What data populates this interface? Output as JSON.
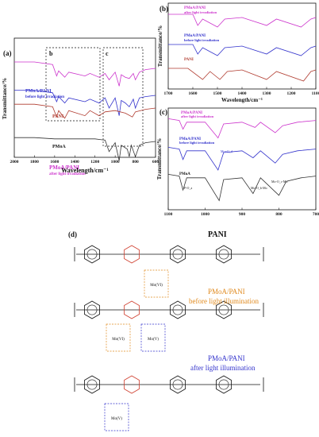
{
  "chart_data": [
    {
      "panel": "(a)",
      "type": "line",
      "xlabel": "Wavelength/cm⁻¹",
      "ylabel": "Transmittance/%",
      "xlim": [
        2000,
        600
      ],
      "x_reversed": true,
      "x_ticks": [
        2000,
        1800,
        1600,
        1400,
        1200,
        1000,
        800,
        600
      ],
      "boxes": [
        "b",
        "c"
      ],
      "series": [
        {
          "name": "PMoA/PANI after light irradiation",
          "color": "#cc33cc",
          "points": [
            [
              2000,
              5
            ],
            [
              1800,
              5
            ],
            [
              1620,
              3
            ],
            [
              1580,
              -6
            ],
            [
              1560,
              -2
            ],
            [
              1500,
              -7
            ],
            [
              1460,
              -3
            ],
            [
              1300,
              -6
            ],
            [
              1250,
              -4
            ],
            [
              1160,
              -7
            ],
            [
              1100,
              -4
            ],
            [
              1060,
              -9
            ],
            [
              1000,
              -3
            ],
            [
              960,
              -14
            ],
            [
              940,
              -5
            ],
            [
              900,
              -7
            ],
            [
              860,
              -8
            ],
            [
              820,
              -4
            ],
            [
              800,
              -9
            ],
            [
              760,
              -3
            ],
            [
              700,
              -1
            ],
            [
              600,
              0
            ]
          ]
        },
        {
          "name": "PMoA/PANI before light irradiation",
          "color": "#3333cc",
          "points": [
            [
              2000,
              4
            ],
            [
              1800,
              4
            ],
            [
              1620,
              2
            ],
            [
              1580,
              -5
            ],
            [
              1560,
              -1
            ],
            [
              1500,
              -6
            ],
            [
              1460,
              -2
            ],
            [
              1300,
              -5
            ],
            [
              1250,
              -3
            ],
            [
              1160,
              -6
            ],
            [
              1100,
              -2
            ],
            [
              1060,
              -10
            ],
            [
              1000,
              -2
            ],
            [
              960,
              -16
            ],
            [
              940,
              -4
            ],
            [
              900,
              -6
            ],
            [
              860,
              -9
            ],
            [
              820,
              -3
            ],
            [
              800,
              -10
            ],
            [
              760,
              -2
            ],
            [
              700,
              -1
            ],
            [
              600,
              0
            ]
          ]
        },
        {
          "name": "PANI",
          "color": "#b03a2e",
          "points": [
            [
              2000,
              3
            ],
            [
              1800,
              3
            ],
            [
              1620,
              1
            ],
            [
              1580,
              -7
            ],
            [
              1560,
              -2
            ],
            [
              1500,
              -8
            ],
            [
              1460,
              -2
            ],
            [
              1300,
              -6
            ],
            [
              1250,
              -2
            ],
            [
              1160,
              -6
            ],
            [
              1100,
              -3
            ],
            [
              1000,
              -2
            ],
            [
              900,
              -4
            ],
            [
              830,
              -7
            ],
            [
              800,
              -3
            ],
            [
              700,
              -1
            ],
            [
              600,
              0
            ]
          ]
        },
        {
          "name": "PMoA",
          "color": "#333333",
          "points": [
            [
              2000,
              3
            ],
            [
              1800,
              3
            ],
            [
              1600,
              2
            ],
            [
              1400,
              2
            ],
            [
              1200,
              2
            ],
            [
              1100,
              1
            ],
            [
              1060,
              -8
            ],
            [
              1000,
              -1
            ],
            [
              960,
              -15
            ],
            [
              940,
              -3
            ],
            [
              880,
              -6
            ],
            [
              860,
              -12
            ],
            [
              840,
              -3
            ],
            [
              800,
              -12
            ],
            [
              760,
              -3
            ],
            [
              700,
              -1
            ],
            [
              600,
              0
            ]
          ]
        }
      ]
    },
    {
      "panel": "(b)",
      "type": "line",
      "xlabel": "Wavelength/cm⁻¹",
      "ylabel": "Transmittance/%",
      "xlim": [
        1700,
        1100
      ],
      "x_reversed": true,
      "x_ticks": [
        1700,
        1600,
        1500,
        1400,
        1300,
        1200,
        1100
      ],
      "series": [
        {
          "name": "PMoA/PANI after light irradiation",
          "color": "#cc33cc",
          "points": [
            [
              1700,
              3
            ],
            [
              1600,
              3
            ],
            [
              1580,
              -4
            ],
            [
              1560,
              0
            ],
            [
              1500,
              -5
            ],
            [
              1470,
              0
            ],
            [
              1400,
              1
            ],
            [
              1300,
              -4
            ],
            [
              1260,
              0
            ],
            [
              1160,
              -5
            ],
            [
              1120,
              0
            ],
            [
              1100,
              1
            ]
          ]
        },
        {
          "name": "PMoA/PANI before light irradiation",
          "color": "#3333cc",
          "points": [
            [
              1700,
              2
            ],
            [
              1600,
              2
            ],
            [
              1580,
              -4
            ],
            [
              1560,
              0
            ],
            [
              1500,
              -5
            ],
            [
              1470,
              0
            ],
            [
              1400,
              1
            ],
            [
              1300,
              -4
            ],
            [
              1260,
              0
            ],
            [
              1160,
              -5
            ],
            [
              1120,
              0
            ],
            [
              1100,
              1
            ]
          ]
        },
        {
          "name": "PANI",
          "color": "#b03a2e",
          "points": [
            [
              1700,
              2
            ],
            [
              1620,
              2
            ],
            [
              1560,
              -5
            ],
            [
              1530,
              0
            ],
            [
              1490,
              -5
            ],
            [
              1460,
              0
            ],
            [
              1400,
              1
            ],
            [
              1300,
              -5
            ],
            [
              1260,
              0
            ],
            [
              1150,
              -6
            ],
            [
              1120,
              0
            ],
            [
              1100,
              1
            ]
          ]
        }
      ]
    },
    {
      "panel": "(c)",
      "type": "line",
      "xlabel": "Wavelength/cm⁻¹",
      "ylabel": "Transmittance/%",
      "xlim": [
        1100,
        700
      ],
      "x_reversed": true,
      "x_ticks": [
        1100,
        1000,
        900,
        800,
        700
      ],
      "series": [
        {
          "name": "PMoA/PANI after light irradiation",
          "color": "#cc33cc",
          "points": [
            [
              1100,
              3
            ],
            [
              1070,
              2
            ],
            [
              1060,
              -3
            ],
            [
              1050,
              1
            ],
            [
              1000,
              1
            ],
            [
              965,
              -8
            ],
            [
              950,
              0
            ],
            [
              900,
              1
            ],
            [
              865,
              -2
            ],
            [
              850,
              1
            ],
            [
              810,
              -5
            ],
            [
              790,
              -1
            ],
            [
              750,
              1
            ],
            [
              700,
              2
            ]
          ]
        },
        {
          "name": "PMoA/PANI before light irradiation",
          "color": "#3333cc",
          "points": [
            [
              1100,
              3
            ],
            [
              1070,
              2
            ],
            [
              1060,
              -4
            ],
            [
              1050,
              1
            ],
            [
              1000,
              1
            ],
            [
              965,
              -10
            ],
            [
              950,
              0
            ],
            [
              900,
              1
            ],
            [
              870,
              -3
            ],
            [
              850,
              1
            ],
            [
              810,
              -6
            ],
            [
              790,
              -1
            ],
            [
              750,
              1
            ],
            [
              700,
              2
            ]
          ]
        },
        {
          "name": "PMoA",
          "color": "#333333",
          "points": [
            [
              1100,
              3
            ],
            [
              1070,
              2
            ],
            [
              1060,
              -6
            ],
            [
              1050,
              1
            ],
            [
              1000,
              1
            ],
            [
              962,
              -12
            ],
            [
              950,
              0
            ],
            [
              900,
              1
            ],
            [
              870,
              -8
            ],
            [
              850,
              1
            ],
            [
              800,
              -9
            ],
            [
              780,
              -1
            ],
            [
              740,
              1
            ],
            [
              700,
              2
            ]
          ]
        }
      ]
    }
  ],
  "panels": {
    "a": {
      "label": "(a)",
      "sub_b": "b",
      "sub_c": "c",
      "legend": {
        "after_1": "PMoA/PANI",
        "after_2": "after light irradiation",
        "before_1": "PMoA/PANI",
        "before_2": "before light irradiation",
        "pani": "PANI",
        "pmoa": "PMoA"
      }
    },
    "b": {
      "label": "(b)",
      "legend": {
        "after_1": "PMoA/PANI",
        "after_2": "after light irradiation",
        "before_1": "PMoA/PANI",
        "before_2": "before light irradiation",
        "pani": "PANI"
      }
    },
    "c": {
      "label": "(c)",
      "legend": {
        "after_1": "PMoA/PANI",
        "after_2": "after light irradiation",
        "before_1": "PMoA/PANI",
        "before_2": "before light irradiation",
        "pmoa": "PMoA"
      },
      "ann_mo_o_d": "Mo=O_d",
      "ann_mo_ob_mo": "Mo-O_b-Mo",
      "ann_mo_oc_mo": "Mo-O_c-Mo",
      "ann_p_oa": "P-O_a"
    },
    "d": {
      "label": "(d)",
      "title": "PANI",
      "label_before_1": "PMoA/PANI",
      "label_before_2": "before light illumination",
      "label_after_1": "PMoA/PANI",
      "label_after_2": "after light illumination",
      "mo6": "Mo(VI)",
      "mo5": "Mo(V)"
    }
  },
  "colors": {
    "after": "#cc33cc",
    "before": "#3333cc",
    "pani": "#b03a2e",
    "pmoa": "#333333",
    "orange": "#e08a1e",
    "blue": "#3333cc",
    "red": "#d04030"
  }
}
